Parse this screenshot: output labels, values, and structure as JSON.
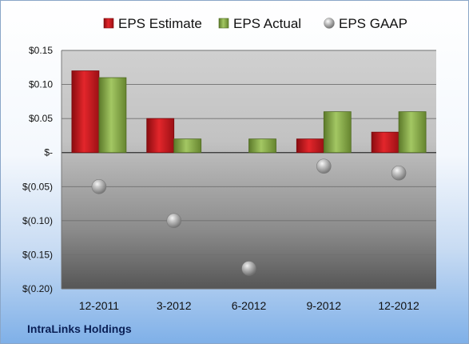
{
  "company_name": "IntraLinks Holdings",
  "colors": {
    "estimate": "#c8151b",
    "actual": "#8fb14b",
    "gaap": "#a9a9a9"
  },
  "chart_data": {
    "type": "bar",
    "categories": [
      "12-2011",
      "3-2012",
      "6-2012",
      "9-2012",
      "12-2012"
    ],
    "series": [
      {
        "name": "EPS Estimate",
        "kind": "bar",
        "values": [
          0.12,
          0.05,
          null,
          0.02,
          0.03
        ]
      },
      {
        "name": "EPS Actual",
        "kind": "bar",
        "values": [
          0.11,
          0.02,
          0.02,
          0.06,
          0.06
        ]
      },
      {
        "name": "EPS GAAP",
        "kind": "marker",
        "values": [
          -0.05,
          -0.1,
          -0.17,
          -0.02,
          -0.03
        ]
      }
    ],
    "ylim": [
      -0.2,
      0.15
    ],
    "yticks": [
      0.15,
      0.1,
      0.05,
      0,
      -0.05,
      -0.1,
      -0.15,
      -0.2
    ],
    "ytick_labels": [
      "$0.15",
      "$0.10",
      "$0.05",
      "$-",
      "$(0.05)",
      "$(0.10)",
      "$(0.15)",
      "$(0.20)"
    ],
    "grid": true,
    "legend": "top"
  }
}
